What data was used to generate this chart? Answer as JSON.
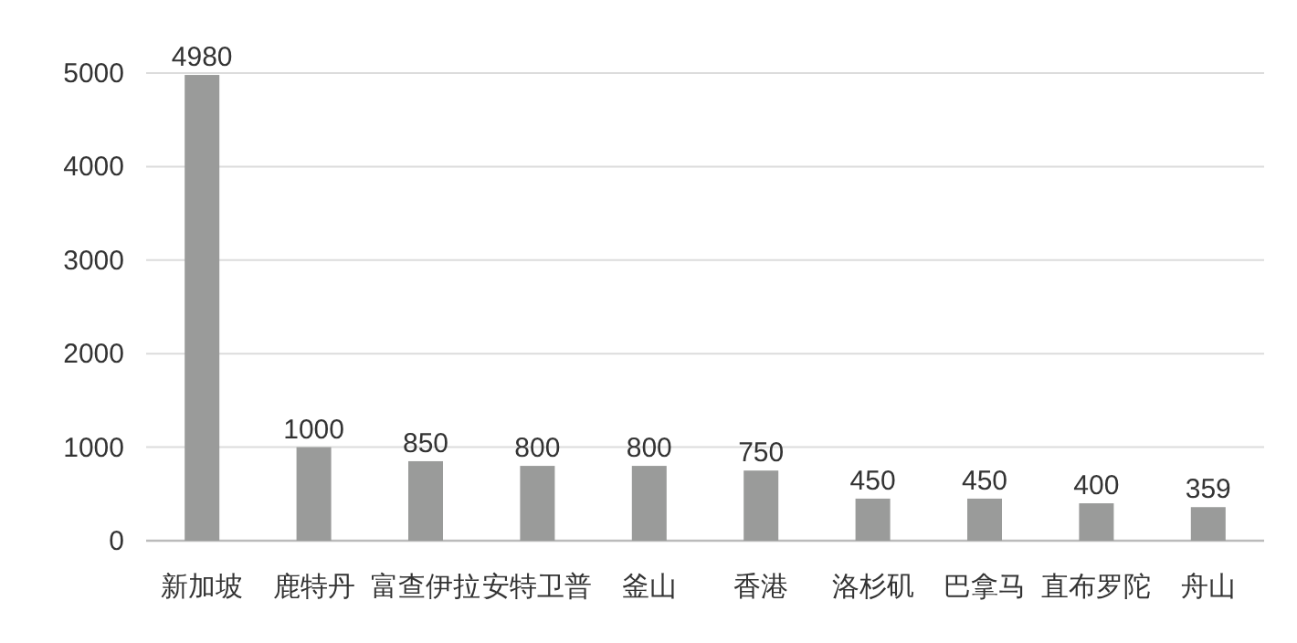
{
  "chart_data": {
    "type": "bar",
    "categories": [
      "新加坡",
      "鹿特丹",
      "富查伊拉",
      "安特卫普",
      "釜山",
      "香港",
      "洛杉矶",
      "巴拿马",
      "直布罗陀",
      "舟山"
    ],
    "values": [
      4980,
      1000,
      850,
      800,
      800,
      750,
      450,
      450,
      400,
      359
    ],
    "color": "#9a9b9a",
    "ylim": [
      0,
      5000
    ],
    "yticks": [
      0,
      1000,
      2000,
      3000,
      4000,
      5000
    ],
    "grid": "y",
    "data_labels": true
  }
}
